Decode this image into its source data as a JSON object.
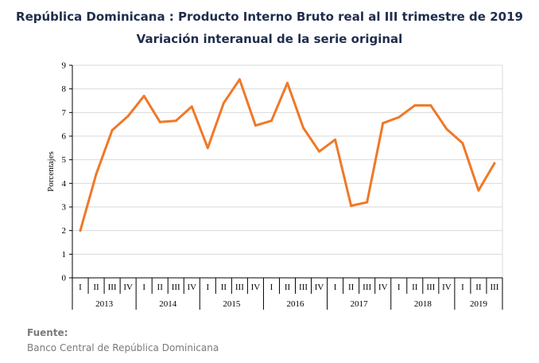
{
  "chart_data": {
    "type": "line",
    "title": "República Dominicana : Producto Interno Bruto real al III trimestre de 2019",
    "subtitle": "Variación interanual de la serie original",
    "ylabel": "Porcentajes",
    "xlabel": "",
    "ylim": [
      0,
      9
    ],
    "yticks": [
      0,
      1,
      2,
      3,
      4,
      5,
      6,
      7,
      8,
      9
    ],
    "grid": true,
    "line_color": "#f07828",
    "years": [
      {
        "label": "2013",
        "quarters": [
          "I",
          "II",
          "III",
          "IV"
        ]
      },
      {
        "label": "2014",
        "quarters": [
          "I",
          "II",
          "III",
          "IV"
        ]
      },
      {
        "label": "2015",
        "quarters": [
          "I",
          "II",
          "III",
          "IV"
        ]
      },
      {
        "label": "2016",
        "quarters": [
          "I",
          "II",
          "III",
          "IV"
        ]
      },
      {
        "label": "2017",
        "quarters": [
          "I",
          "II",
          "III",
          "IV"
        ]
      },
      {
        "label": "2018",
        "quarters": [
          "I",
          "II",
          "III",
          "IV"
        ]
      },
      {
        "label": "2019",
        "quarters": [
          "I",
          "II",
          "III"
        ]
      }
    ],
    "values": [
      2.0,
      4.4,
      6.25,
      6.85,
      7.7,
      6.6,
      6.65,
      7.25,
      5.5,
      7.4,
      8.4,
      6.45,
      6.65,
      8.25,
      6.35,
      5.35,
      5.85,
      3.05,
      3.2,
      6.55,
      6.8,
      7.3,
      7.3,
      6.3,
      5.7,
      3.7,
      4.85
    ]
  },
  "source": {
    "label": "Fuente:",
    "text": "Banco Central de República Dominicana"
  }
}
